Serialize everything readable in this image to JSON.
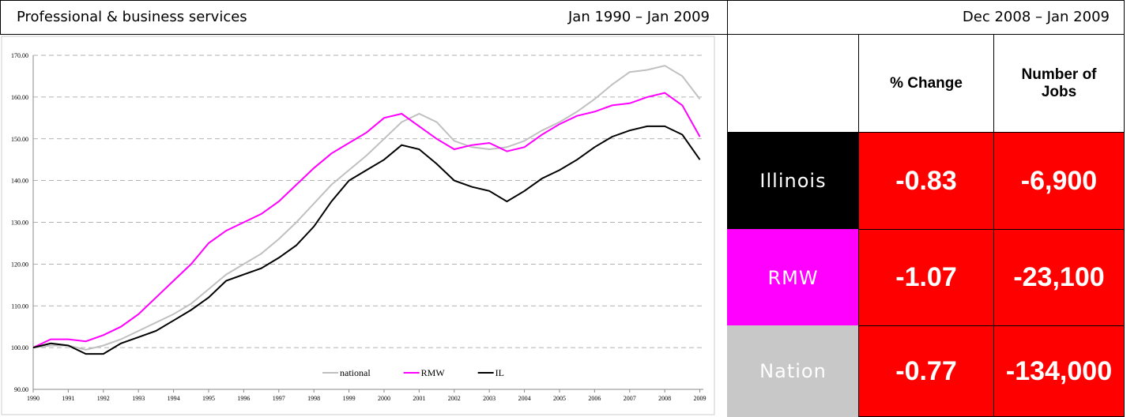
{
  "chart_data": {
    "type": "line",
    "title": "Professional & business services",
    "subtitle": "Jan 1990 – Jan 2009",
    "x": [
      1990,
      1990.5,
      1991,
      1991.5,
      1992,
      1992.5,
      1993,
      1993.5,
      1994,
      1994.5,
      1995,
      1995.5,
      1996,
      1996.5,
      1997,
      1997.5,
      1998,
      1998.5,
      1999,
      1999.5,
      2000,
      2000.5,
      2001,
      2001.5,
      2002,
      2002.5,
      2003,
      2003.5,
      2004,
      2004.5,
      2005,
      2005.5,
      2006,
      2006.5,
      2007,
      2007.5,
      2008,
      2008.5,
      2009
    ],
    "series": [
      {
        "name": "national",
        "color": "#c0c0c0",
        "values": [
          100,
          100.5,
          100.5,
          99.5,
          100.5,
          102,
          104,
          106,
          108,
          110.5,
          114,
          117.5,
          120,
          122.5,
          126,
          130,
          134.5,
          139,
          142.5,
          146,
          150,
          154,
          156,
          154,
          149.5,
          148,
          147.5,
          148,
          149.5,
          152,
          154,
          156.5,
          159.5,
          163,
          166,
          166.5,
          167.5,
          165,
          159.5
        ]
      },
      {
        "name": "RMW",
        "color": "#ff00ff",
        "values": [
          100,
          102,
          102,
          101.5,
          103,
          105,
          108,
          112,
          116,
          120,
          125,
          128,
          130,
          132,
          135,
          139,
          143,
          146.5,
          149,
          151.5,
          155,
          156,
          153,
          150,
          147.5,
          148.5,
          149,
          147,
          148,
          151,
          153.5,
          155.5,
          156.5,
          158,
          158.5,
          160,
          161,
          158,
          150.5
        ]
      },
      {
        "name": "IL",
        "color": "#000000",
        "values": [
          100,
          101,
          100.5,
          98.5,
          98.5,
          101,
          102.5,
          104,
          106.5,
          109,
          112,
          116,
          117.5,
          119,
          121.5,
          124.5,
          129,
          135,
          140,
          142.5,
          145,
          148.5,
          147.5,
          144,
          140,
          138.5,
          137.5,
          135,
          137.5,
          140.5,
          142.5,
          145,
          148,
          150.5,
          152,
          153,
          153,
          151,
          145
        ]
      }
    ],
    "xlim": [
      1990,
      2009.1
    ],
    "xticks": [
      1990,
      1991,
      1992,
      1993,
      1994,
      1995,
      1996,
      1997,
      1998,
      1999,
      2000,
      2001,
      2002,
      2003,
      2004,
      2005,
      2006,
      2007,
      2008,
      2009
    ],
    "ylim": [
      90,
      170
    ],
    "yticks": [
      {
        "value": 90,
        "label": "90.00"
      },
      {
        "value": 100,
        "label": "100.00"
      },
      {
        "value": 110,
        "label": "110.00"
      },
      {
        "value": 120,
        "label": "120.00"
      },
      {
        "value": 130,
        "label": "130.00"
      },
      {
        "value": 140,
        "label": "140.00"
      },
      {
        "value": 150,
        "label": "150.00"
      },
      {
        "value": 160,
        "label": "160.00"
      },
      {
        "value": 170,
        "label": "170.00"
      }
    ],
    "grid": true
  },
  "table": {
    "title": "Dec 2008 – Jan 2009",
    "columns": [
      "% Change",
      "Number of Jobs"
    ],
    "rows": [
      {
        "label": "Illinois",
        "color": "#000000",
        "pct_change": "-0.83",
        "jobs": "-6,900"
      },
      {
        "label": "RMW",
        "color": "#ff00ff",
        "pct_change": "-1.07",
        "jobs": "-23,100"
      },
      {
        "label": "Nation",
        "color": "#c8c8c8",
        "pct_change": "-0.77",
        "jobs": "-134,000"
      }
    ]
  }
}
